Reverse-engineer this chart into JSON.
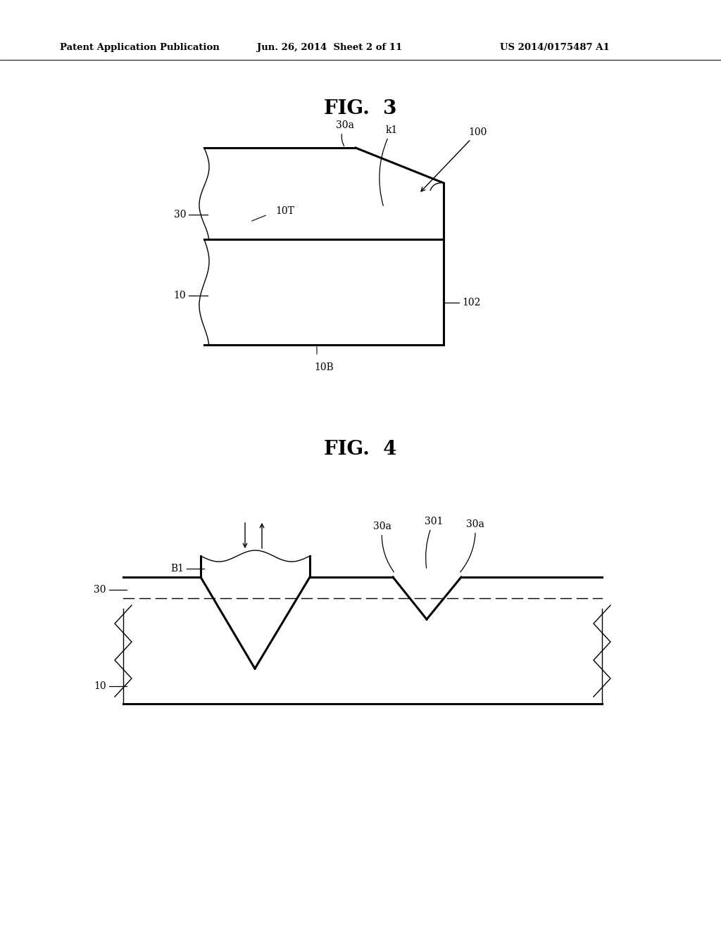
{
  "bg_color": "#ffffff",
  "line_color": "#000000",
  "header_left": "Patent Application Publication",
  "header_mid": "Jun. 26, 2014  Sheet 2 of 11",
  "header_right": "US 2014/0175487 A1",
  "fig3_title": "FIG.  3",
  "fig4_title": "FIG.  4"
}
